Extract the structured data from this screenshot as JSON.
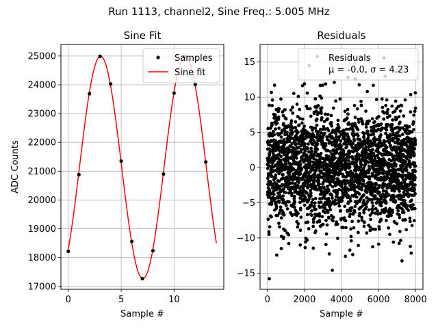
{
  "figure": {
    "suptitle": "Run 1113, channel2, Sine Freq.: 5.005 MHz"
  },
  "chart_data": [
    {
      "type": "scatter",
      "title": "Sine Fit",
      "xlabel": "Sample #",
      "ylabel": "ADC Counts",
      "xlim": [
        -0.7,
        14.7
      ],
      "ylim": [
        16900,
        25400
      ],
      "xticks": [
        0,
        5,
        10
      ],
      "yticks": [
        17000,
        18000,
        19000,
        20000,
        21000,
        22000,
        23000,
        24000,
        25000
      ],
      "grid": true,
      "legend": {
        "placement": "upper-right",
        "entries": [
          "Samples",
          "Sine fit"
        ]
      },
      "series": [
        {
          "name": "Samples",
          "kind": "points",
          "color": "#000000",
          "x": [
            0,
            1,
            2,
            3,
            4,
            5,
            6,
            7,
            8,
            9,
            10,
            11,
            12,
            13
          ],
          "y": [
            18220,
            20880,
            23690,
            24990,
            24030,
            21350,
            18560,
            17270,
            18240,
            20900,
            23710,
            24990,
            24010,
            21320
          ]
        },
        {
          "name": "Sine fit",
          "kind": "line",
          "color": "#ff0000",
          "model": {
            "offset": 21130,
            "amplitude": 3860,
            "period": 8.0,
            "peak_at": 3.05,
            "x_start": 0,
            "x_end": 14
          }
        }
      ]
    },
    {
      "type": "scatter",
      "title": "Residuals",
      "xlabel": "Sample #",
      "ylabel": "",
      "xlim": [
        -400,
        8400
      ],
      "ylim": [
        -17.3,
        17.5
      ],
      "xticks": [
        0,
        2000,
        4000,
        6000,
        8000
      ],
      "yticks": [
        -15,
        -10,
        -5,
        0,
        5,
        10,
        15
      ],
      "grid": true,
      "legend": {
        "placement": "upper-right",
        "entries": [
          "Residuals",
          "μ = -0.0, σ = 4.23"
        ]
      },
      "series": [
        {
          "name": "Residuals",
          "kind": "points",
          "color": "#000000",
          "n_samples": 8000,
          "mean": -0.0,
          "std": 4.23,
          "outliers": [
            [
              100,
              -15.8
            ],
            [
              2250,
              14.5
            ],
            [
              2700,
              15.8
            ],
            [
              3500,
              -14.6
            ],
            [
              6300,
              15.6
            ]
          ]
        }
      ]
    }
  ]
}
